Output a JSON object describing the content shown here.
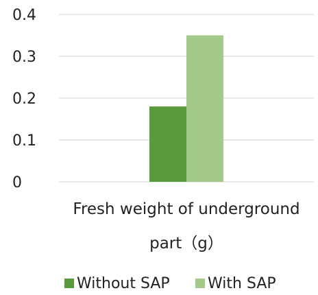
{
  "chart_data": {
    "type": "bar",
    "categories": [
      "Fresh weight of underground part（g）"
    ],
    "xlabel_lines": [
      "Fresh weight of underground",
      "part（g）"
    ],
    "ylim": [
      0,
      0.4
    ],
    "yticks": [
      "0",
      "0.1",
      "0.2",
      "0.3",
      "0.4"
    ],
    "grid": true,
    "legend_position": "bottom",
    "series": [
      {
        "name": "Without SAP",
        "values": [
          0.18
        ],
        "color": "#5b9a3c"
      },
      {
        "name": "With SAP",
        "values": [
          0.35
        ],
        "color": "#a3c98b"
      }
    ]
  }
}
